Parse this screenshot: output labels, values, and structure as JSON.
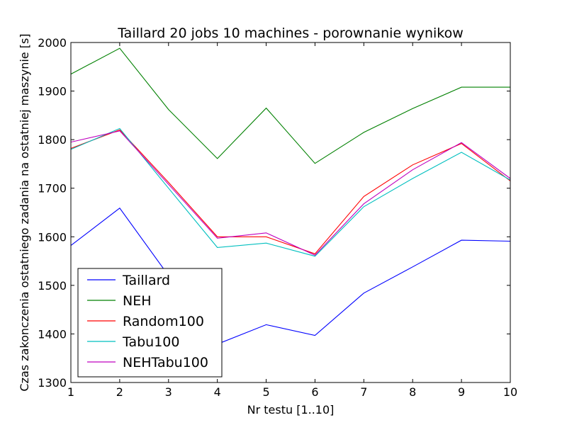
{
  "chart_data": {
    "type": "line",
    "title": "Taillard 20 jobs 10 machines - porownanie wynikow",
    "xlabel": "Nr testu [1..10]",
    "ylabel": "Czas zakonczenia ostatniego zadania na ostatniej maszynie [s]",
    "x": [
      1,
      2,
      3,
      4,
      5,
      6,
      7,
      8,
      9,
      10
    ],
    "xlim": [
      1,
      10
    ],
    "ylim": [
      1300,
      2000
    ],
    "xticks": [
      1,
      2,
      3,
      4,
      5,
      6,
      7,
      8,
      9,
      10
    ],
    "yticks": [
      1300,
      1400,
      1500,
      1600,
      1700,
      1800,
      1900,
      2000
    ],
    "grid": false,
    "legend_position": "lower-left",
    "series": [
      {
        "name": "Taillard",
        "color": "#0000ff",
        "values": [
          1582,
          1659,
          1520,
          1379,
          1419,
          1397,
          1484,
          1538,
          1593,
          1591
        ]
      },
      {
        "name": "NEH",
        "color": "#008000",
        "values": [
          1935,
          1988,
          1862,
          1761,
          1865,
          1751,
          1815,
          1864,
          1908,
          1908
        ]
      },
      {
        "name": "Random100",
        "color": "#ff0000",
        "values": [
          1782,
          1820,
          1712,
          1600,
          1600,
          1565,
          1683,
          1748,
          1792,
          1715
        ]
      },
      {
        "name": "Tabu100",
        "color": "#00bfbf",
        "values": [
          1780,
          1823,
          1700,
          1578,
          1587,
          1560,
          1662,
          1720,
          1774,
          1717
        ]
      },
      {
        "name": "NEHTabu100",
        "color": "#bf00bf",
        "values": [
          1795,
          1818,
          1708,
          1597,
          1608,
          1562,
          1668,
          1738,
          1794,
          1720
        ]
      }
    ]
  }
}
